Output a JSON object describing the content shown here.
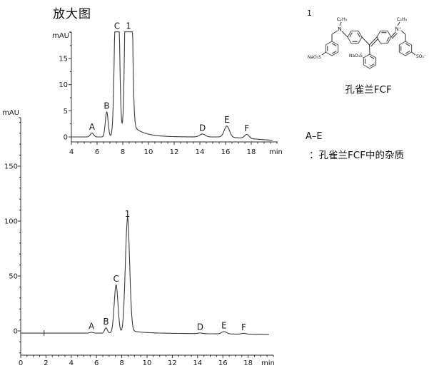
{
  "figure": {
    "title": "放大图",
    "annotation_line1": "A–E",
    "annotation_line2": "：孔雀兰FCF中的杂质"
  },
  "structure": {
    "compound_number": "1",
    "caption": "孔雀兰FCF",
    "labels": {
      "ethyl_left": "C₂H₅",
      "amine_left": "N",
      "ethyl_right": "C₂H₅",
      "iminium_right": "N⁺",
      "sulfonate_left": "NaO₃S",
      "sulfonate_center": "NaO₃S",
      "sulfonate_right": "SO₃⁻"
    }
  },
  "chart_data": [
    {
      "name": "zoomed_chromatogram",
      "type": "line",
      "title": "放大图",
      "xlabel": "min",
      "ylabel": "mAU",
      "xlim": [
        4,
        20
      ],
      "ylim": [
        -1,
        20.2
      ],
      "x_ticks": [
        4,
        6,
        8,
        10,
        12,
        14,
        16,
        18
      ],
      "x_minor_step": 0.5,
      "y_ticks": [
        0,
        5,
        10,
        15
      ],
      "y_minor_step": 2.5,
      "grid": false,
      "clip_level": 20.1,
      "baseline": {
        "level": 0,
        "drift_start": 16,
        "end_level": -0.7
      },
      "peaks": [
        {
          "label": "A",
          "rt_min": 5.6,
          "height_mau": 0.75,
          "sigma_min": 0.13
        },
        {
          "label": "B",
          "rt_min": 6.75,
          "height_mau": 4.8,
          "sigma_min": 0.11
        },
        {
          "label": "C",
          "rt_min": 7.55,
          "height_mau": 44,
          "sigma_min": 0.15
        },
        {
          "label": "1",
          "rt_min": 8.45,
          "height_mau": 103,
          "sigma_min": 0.17,
          "tail": {
            "amp": 3,
            "tau": 0.9
          }
        },
        {
          "label": "D",
          "rt_min": 14.2,
          "height_mau": 0.55,
          "sigma_min": 0.22
        },
        {
          "label": "E",
          "rt_min": 16.1,
          "height_mau": 2.1,
          "sigma_min": 0.2
        },
        {
          "label": "F",
          "rt_min": 17.65,
          "height_mau": 0.75,
          "sigma_min": 0.18
        }
      ]
    },
    {
      "name": "full_chromatogram",
      "type": "line",
      "title": "",
      "xlabel": "min",
      "ylabel": "mAU",
      "xlim": [
        0,
        20
      ],
      "ylim": [
        -22,
        194
      ],
      "x_ticks": [
        0,
        2,
        4,
        6,
        8,
        10,
        12,
        14,
        16,
        18
      ],
      "x_minor_step": 0.5,
      "y_ticks": [
        0,
        50,
        100,
        150
      ],
      "y_minor_step": 10,
      "grid": false,
      "clip_level": null,
      "injection_mark_time": 1.85,
      "baseline": {
        "level": -2,
        "drift_start": 10,
        "end_level": -3.2
      },
      "peaks": [
        {
          "label": "A",
          "rt_min": 5.6,
          "height_mau": 0.75,
          "sigma_min": 0.13
        },
        {
          "label": "B",
          "rt_min": 6.75,
          "height_mau": 4.8,
          "sigma_min": 0.11
        },
        {
          "label": "C",
          "rt_min": 7.55,
          "height_mau": 44,
          "sigma_min": 0.15
        },
        {
          "label": "1",
          "rt_min": 8.45,
          "height_mau": 103,
          "sigma_min": 0.17,
          "tail": {
            "amp": 3,
            "tau": 0.9
          }
        },
        {
          "label": "D",
          "rt_min": 14.2,
          "height_mau": 0.55,
          "sigma_min": 0.22
        },
        {
          "label": "E",
          "rt_min": 16.1,
          "height_mau": 2.1,
          "sigma_min": 0.2
        },
        {
          "label": "F",
          "rt_min": 17.65,
          "height_mau": 0.75,
          "sigma_min": 0.18
        }
      ]
    }
  ]
}
